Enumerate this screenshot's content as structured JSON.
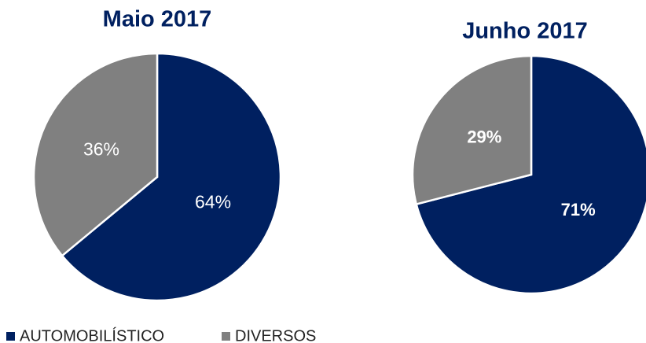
{
  "chart_data": [
    {
      "type": "pie",
      "title": "Maio 2017",
      "values": [
        64,
        36
      ],
      "value_labels": [
        "64%",
        "36%"
      ],
      "colors": [
        "#002060",
        "#808080"
      ]
    },
    {
      "type": "pie",
      "title": "Junho 2017",
      "values": [
        71,
        29
      ],
      "value_labels": [
        "71%",
        "29%"
      ],
      "colors": [
        "#002060",
        "#808080"
      ]
    }
  ],
  "legend": {
    "categories": [
      "AUTOMOBILÍSTICO",
      "DIVERSOS"
    ],
    "colors": [
      "#002060",
      "#808080"
    ]
  }
}
